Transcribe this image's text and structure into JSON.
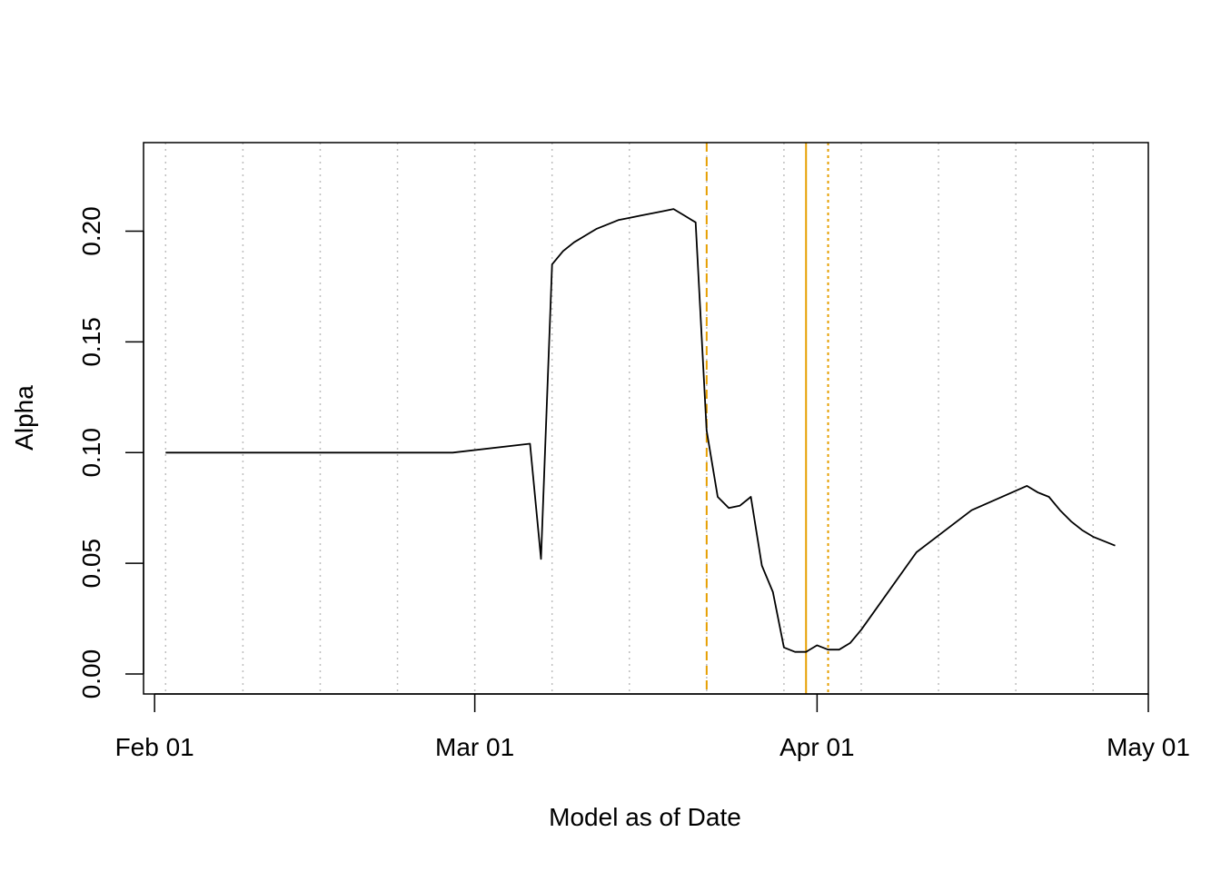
{
  "chart_data": {
    "type": "line",
    "title": "",
    "xlabel": "Model as of Date",
    "ylabel": "Alpha",
    "x_ticks": [
      "2020-02-01",
      "2020-03-01",
      "2020-04-01",
      "2020-05-01"
    ],
    "x_tick_labels": [
      "Feb 01",
      "Mar 01",
      "Apr 01",
      "May 01"
    ],
    "y_ticks": [
      0.0,
      0.05,
      0.1,
      0.15,
      0.2
    ],
    "y_tick_labels": [
      "0.00",
      "0.05",
      "0.10",
      "0.15",
      "0.20"
    ],
    "xlim": [
      "2020-01-31",
      "2020-05-01"
    ],
    "ylim": [
      -0.009,
      0.24
    ],
    "grid_x": [
      "2020-02-02",
      "2020-02-09",
      "2020-02-16",
      "2020-02-23",
      "2020-03-01",
      "2020-03-08",
      "2020-03-15",
      "2020-03-22",
      "2020-03-29",
      "2020-04-05",
      "2020-04-12",
      "2020-04-19",
      "2020-04-26"
    ],
    "reference_lines": [
      {
        "x": "2020-03-22",
        "style": "dashed",
        "color": "#E69F00"
      },
      {
        "x": "2020-03-31",
        "style": "solid",
        "color": "#E69F00"
      },
      {
        "x": "2020-04-02",
        "style": "dotted",
        "color": "#E69F00"
      }
    ],
    "series": [
      {
        "color": "#000000",
        "x": [
          "2020-02-02",
          "2020-02-28",
          "2020-03-06",
          "2020-03-07",
          "2020-03-08",
          "2020-03-09",
          "2020-03-10",
          "2020-03-11",
          "2020-03-12",
          "2020-03-13",
          "2020-03-14",
          "2020-03-15",
          "2020-03-16",
          "2020-03-17",
          "2020-03-18",
          "2020-03-19",
          "2020-03-20",
          "2020-03-21",
          "2020-03-22",
          "2020-03-23",
          "2020-03-24",
          "2020-03-25",
          "2020-03-26",
          "2020-03-27",
          "2020-03-28",
          "2020-03-29",
          "2020-03-30",
          "2020-03-31",
          "2020-04-01",
          "2020-04-02",
          "2020-04-03",
          "2020-04-04",
          "2020-04-05",
          "2020-04-10",
          "2020-04-15",
          "2020-04-20",
          "2020-04-21",
          "2020-04-22",
          "2020-04-23",
          "2020-04-24",
          "2020-04-25",
          "2020-04-26",
          "2020-04-27",
          "2020-04-28"
        ],
        "y": [
          0.1,
          0.1,
          0.104,
          0.052,
          0.185,
          0.191,
          0.195,
          0.198,
          0.201,
          0.203,
          0.205,
          0.206,
          0.207,
          0.208,
          0.209,
          0.21,
          0.207,
          0.204,
          0.11,
          0.08,
          0.075,
          0.076,
          0.08,
          0.049,
          0.037,
          0.012,
          0.01,
          0.01,
          0.013,
          0.011,
          0.011,
          0.014,
          0.02,
          0.055,
          0.074,
          0.085,
          0.082,
          0.08,
          0.074,
          0.069,
          0.065,
          0.062,
          0.06,
          0.058
        ]
      }
    ]
  }
}
